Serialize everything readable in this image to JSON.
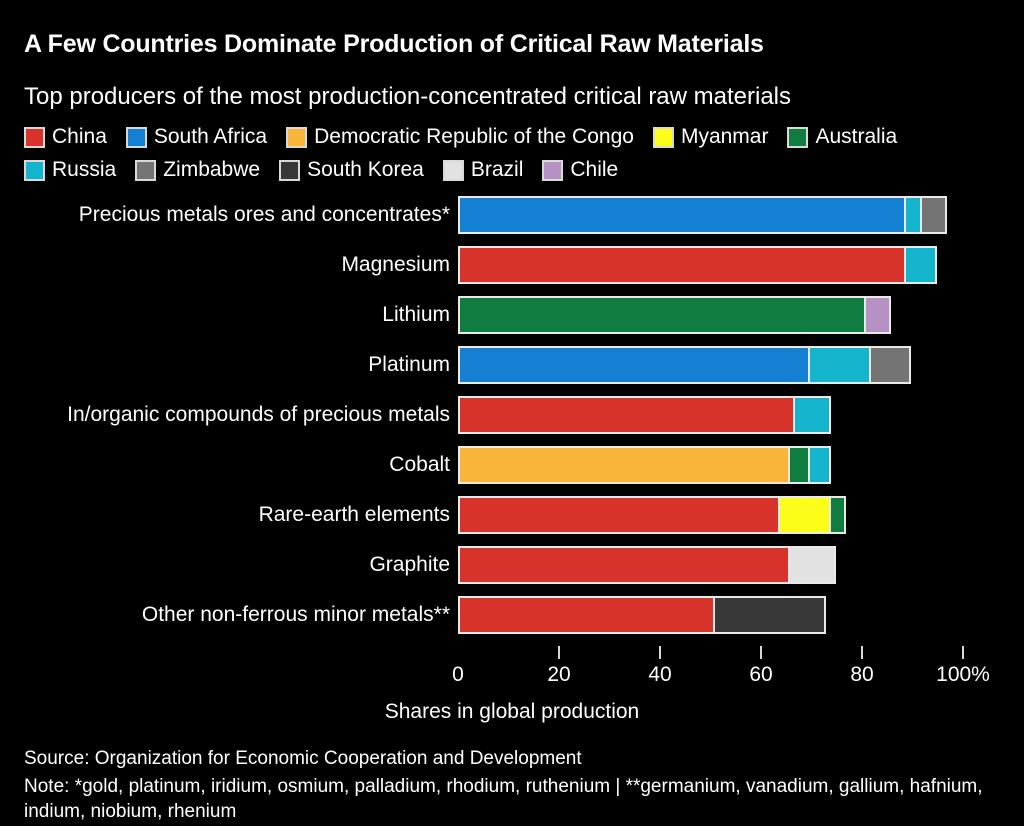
{
  "title": "A Few Countries Dominate Production of Critical Raw Materials",
  "subtitle": "Top producers of the most production-concentrated critical raw materials",
  "legend": [
    {
      "label": "China",
      "color": "#d7332b"
    },
    {
      "label": "South Africa",
      "color": "#1480d4"
    },
    {
      "label": "Democratic Republic of the Congo",
      "color": "#f9b43a"
    },
    {
      "label": "Myanmar",
      "color": "#fdfd1a"
    },
    {
      "label": "Australia",
      "color": "#107c40"
    },
    {
      "label": "Russia",
      "color": "#15b4cd"
    },
    {
      "label": "Zimbabwe",
      "color": "#747474"
    },
    {
      "label": "South Korea",
      "color": "#383838"
    },
    {
      "label": "Brazil",
      "color": "#e2e2e2"
    },
    {
      "label": "Chile",
      "color": "#b691c3"
    }
  ],
  "chart_data": {
    "type": "bar",
    "orientation": "horizontal",
    "stacked": true,
    "unit": "percent",
    "xlim": [
      0,
      100
    ],
    "grid": false,
    "legend_position": "top",
    "categories": [
      "Precious metals ores and concentrates*",
      "Magnesium",
      "Lithium",
      "Platinum",
      "In/organic compounds of precious metals",
      "Cobalt",
      "Rare-earth elements",
      "Graphite",
      "Other non-ferrous minor metals**"
    ],
    "rows": [
      {
        "category": "Precious metals ores and concentrates*",
        "segments": [
          {
            "country": "South Africa",
            "value": 88
          },
          {
            "country": "Russia",
            "value": 3
          },
          {
            "country": "Zimbabwe",
            "value": 5
          }
        ]
      },
      {
        "category": "Magnesium",
        "segments": [
          {
            "country": "China",
            "value": 88
          },
          {
            "country": "Russia",
            "value": 6
          }
        ]
      },
      {
        "category": "Lithium",
        "segments": [
          {
            "country": "Australia",
            "value": 80
          },
          {
            "country": "Chile",
            "value": 5
          }
        ]
      },
      {
        "category": "Platinum",
        "segments": [
          {
            "country": "South Africa",
            "value": 69
          },
          {
            "country": "Russia",
            "value": 12
          },
          {
            "country": "Zimbabwe",
            "value": 8
          }
        ]
      },
      {
        "category": "In/organic compounds of precious metals",
        "segments": [
          {
            "country": "China",
            "value": 66
          },
          {
            "country": "Russia",
            "value": 7
          }
        ]
      },
      {
        "category": "Cobalt",
        "segments": [
          {
            "country": "Democratic Republic of the Congo",
            "value": 65
          },
          {
            "country": "Australia",
            "value": 4
          },
          {
            "country": "Russia",
            "value": 4
          }
        ]
      },
      {
        "category": "Rare-earth elements",
        "segments": [
          {
            "country": "China",
            "value": 63
          },
          {
            "country": "Myanmar",
            "value": 10
          },
          {
            "country": "Australia",
            "value": 3
          }
        ]
      },
      {
        "category": "Graphite",
        "segments": [
          {
            "country": "China",
            "value": 65
          },
          {
            "country": "Brazil",
            "value": 9
          }
        ]
      },
      {
        "category": "Other non-ferrous minor metals**",
        "segments": [
          {
            "country": "China",
            "value": 50
          },
          {
            "country": "South Korea",
            "value": 22
          }
        ]
      }
    ],
    "x_ticks": [
      {
        "value": 0,
        "label": "0"
      },
      {
        "value": 20,
        "label": "20"
      },
      {
        "value": 40,
        "label": "40"
      },
      {
        "value": 60,
        "label": "60"
      },
      {
        "value": 80,
        "label": "80"
      },
      {
        "value": 100,
        "label": "100%"
      }
    ],
    "xlabel": "Shares in global production"
  },
  "footer": {
    "source": "Source: Organization for Economic Cooperation and Development",
    "note": "Note: *gold, platinum, iridium, osmium, palladium, rhodium, ruthenium | **germanium, vanadium, gallium, hafnium, indium, niobium, rhenium"
  }
}
